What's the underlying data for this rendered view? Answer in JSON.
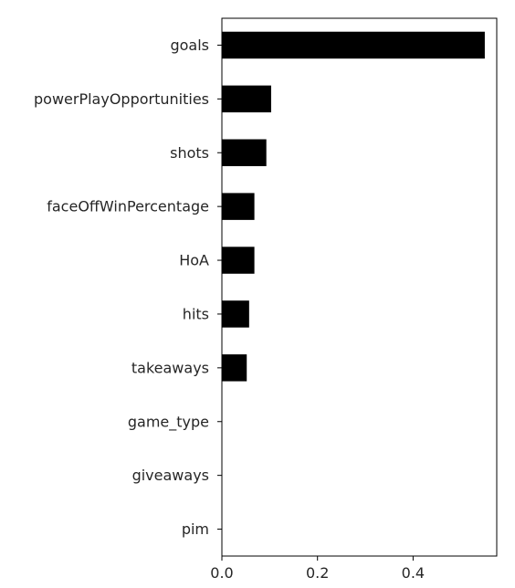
{
  "chart_data": {
    "type": "bar",
    "orientation": "horizontal",
    "categories": [
      "goals",
      "powerPlayOpportunities",
      "shots",
      "faceOffWinPercentage",
      "HoA",
      "hits",
      "takeaways",
      "game_type",
      "giveaways",
      "pim"
    ],
    "values": [
      0.55,
      0.103,
      0.093,
      0.068,
      0.068,
      0.057,
      0.052,
      0.0,
      0.0,
      0.0
    ],
    "xlim": [
      0,
      0.575
    ],
    "xticks": [
      0.0,
      0.2,
      0.4
    ],
    "xtick_labels": [
      "0.0",
      "0.2",
      "0.4"
    ],
    "bar_color": "#000000",
    "title": "",
    "xlabel": "",
    "ylabel": "",
    "grid": false,
    "legend": "none"
  }
}
